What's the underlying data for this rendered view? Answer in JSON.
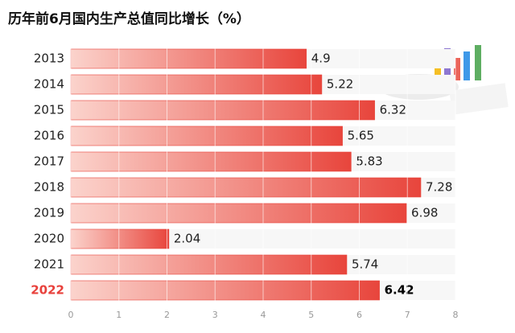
{
  "chart_data": {
    "type": "bar",
    "orientation": "horizontal",
    "title": "历年前6月国内生产总值同比增长（%）",
    "categories": [
      "2013",
      "2014",
      "2015",
      "2016",
      "2017",
      "2018",
      "2019",
      "2020",
      "2021",
      "2022"
    ],
    "values": [
      4.9,
      5.22,
      6.32,
      5.65,
      5.83,
      7.28,
      6.98,
      2.04,
      5.74,
      6.42
    ],
    "color": "#e8453c",
    "xlim": [
      0,
      8
    ],
    "xticks": [
      0,
      1,
      2,
      3,
      4,
      5,
      6,
      7,
      8
    ],
    "grid": true
  }
}
